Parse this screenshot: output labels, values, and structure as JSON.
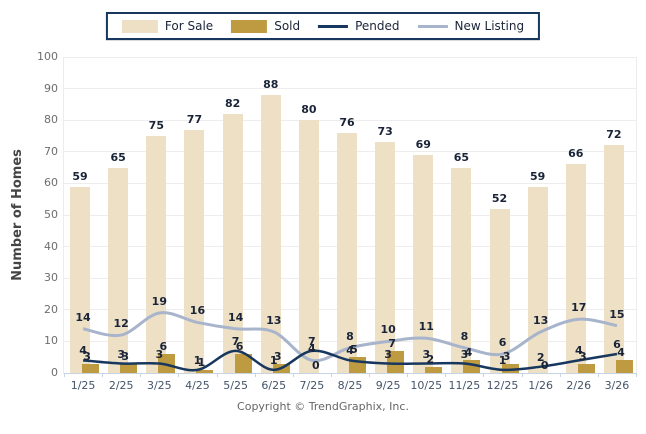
{
  "page": {
    "footer": "Copyright © TrendGraphix, Inc."
  },
  "chart_data": {
    "type": "bar",
    "subtype": "combo-bar-line",
    "title": "",
    "xlabel": "",
    "ylabel": "Number of Homes",
    "ylim": [
      0,
      100
    ],
    "ytick_step": 10,
    "grid": true,
    "legend_position": "top",
    "categories": [
      "1/25",
      "2/25",
      "3/25",
      "4/25",
      "5/25",
      "6/25",
      "7/25",
      "8/25",
      "9/25",
      "10/25",
      "11/25",
      "12/25",
      "1/26",
      "2/26",
      "3/26"
    ],
    "series": [
      {
        "name": "For Sale",
        "type": "bar",
        "color": "#EDE0C5",
        "values": [
          59,
          65,
          75,
          77,
          82,
          88,
          80,
          76,
          73,
          69,
          65,
          52,
          59,
          66,
          72
        ]
      },
      {
        "name": "Sold",
        "type": "bar",
        "color": "#BE9B40",
        "values": [
          3,
          3,
          6,
          1,
          6,
          3,
          0,
          5,
          7,
          2,
          4,
          3,
          0,
          3,
          4
        ]
      },
      {
        "name": "Pended",
        "type": "line",
        "color": "#17375E",
        "values": [
          4,
          3,
          3,
          1,
          7,
          1,
          7,
          4,
          3,
          3,
          3,
          1,
          2,
          4,
          6
        ]
      },
      {
        "name": "New Listing",
        "type": "line",
        "color": "#A8B4CB",
        "values": [
          14,
          12,
          19,
          16,
          14,
          13,
          4,
          8,
          10,
          11,
          8,
          6,
          13,
          17,
          15
        ]
      }
    ],
    "colors": {
      "axis": "#C9D4E2",
      "gridline": "#EDEDED",
      "value_label": "#1A2438",
      "x_tick": "#44546A",
      "y_tick": "#6E6E6E",
      "legend_border": "#17375E"
    }
  }
}
